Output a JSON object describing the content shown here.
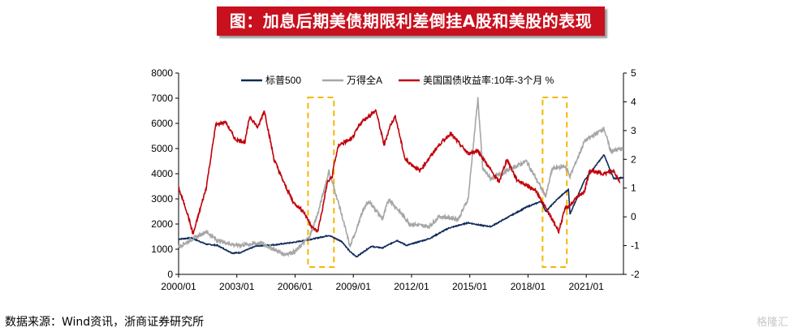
{
  "title": "图：加息后期美债期限利差倒挂A股和美股的表现",
  "source": "数据来源：Wind资讯，浙商证券研究所",
  "watermark": "格隆汇",
  "chart_data": {
    "type": "line",
    "x_ticks": [
      "2000/01",
      "2003/01",
      "2006/01",
      "2009/01",
      "2012/01",
      "2015/01",
      "2018/01",
      "2021/01"
    ],
    "x_range": [
      "2000-01",
      "2022-12"
    ],
    "y_left": {
      "ticks": [
        0,
        1000,
        2000,
        3000,
        4000,
        5000,
        6000,
        7000,
        8000
      ],
      "range": [
        0,
        8000
      ]
    },
    "y_right": {
      "ticks": [
        -2,
        -1,
        0,
        1,
        2,
        3,
        4,
        5
      ],
      "range": [
        -2,
        5
      ]
    },
    "legend_position": "top",
    "series": [
      {
        "name": "标普500",
        "axis": "left",
        "color": "#0f2a5c",
        "points": [
          [
            "2000-01",
            1400
          ],
          [
            "2000-09",
            1450
          ],
          [
            "2001-06",
            1200
          ],
          [
            "2002-01",
            1150
          ],
          [
            "2002-10",
            850
          ],
          [
            "2003-03",
            860
          ],
          [
            "2004-01",
            1130
          ],
          [
            "2005-01",
            1180
          ],
          [
            "2006-01",
            1280
          ],
          [
            "2007-01",
            1420
          ],
          [
            "2007-10",
            1550
          ],
          [
            "2008-06",
            1300
          ],
          [
            "2008-11",
            900
          ],
          [
            "2009-03",
            700
          ],
          [
            "2009-12",
            1110
          ],
          [
            "2010-07",
            1050
          ],
          [
            "2011-04",
            1350
          ],
          [
            "2011-10",
            1150
          ],
          [
            "2012-12",
            1420
          ],
          [
            "2013-12",
            1840
          ],
          [
            "2014-12",
            2050
          ],
          [
            "2015-08",
            1950
          ],
          [
            "2016-02",
            1900
          ],
          [
            "2016-12",
            2250
          ],
          [
            "2017-12",
            2670
          ],
          [
            "2018-09",
            2900
          ],
          [
            "2018-12",
            2500
          ],
          [
            "2019-07",
            2980
          ],
          [
            "2020-02",
            3380
          ],
          [
            "2020-03",
            2400
          ],
          [
            "2020-12",
            3750
          ],
          [
            "2021-12",
            4750
          ],
          [
            "2022-06",
            3800
          ],
          [
            "2022-12",
            3850
          ]
        ]
      },
      {
        "name": "万得全A",
        "axis": "left",
        "color": "#a6a6a6",
        "points": [
          [
            "2000-01",
            1100
          ],
          [
            "2001-06",
            1700
          ],
          [
            "2002-01",
            1350
          ],
          [
            "2003-01",
            1150
          ],
          [
            "2004-04",
            1250
          ],
          [
            "2005-06",
            800
          ],
          [
            "2006-01",
            900
          ],
          [
            "2006-10",
            1500
          ],
          [
            "2007-03",
            2400
          ],
          [
            "2007-10",
            4100
          ],
          [
            "2008-04",
            2800
          ],
          [
            "2008-11",
            1100
          ],
          [
            "2009-08",
            2700
          ],
          [
            "2009-11",
            2900
          ],
          [
            "2010-07",
            2200
          ],
          [
            "2010-11",
            3000
          ],
          [
            "2011-12",
            2000
          ],
          [
            "2012-12",
            1900
          ],
          [
            "2013-06",
            2300
          ],
          [
            "2014-06",
            2200
          ],
          [
            "2014-12",
            3000
          ],
          [
            "2015-06",
            7000
          ],
          [
            "2015-09",
            4200
          ],
          [
            "2016-02",
            3800
          ],
          [
            "2017-12",
            4500
          ],
          [
            "2018-12",
            3100
          ],
          [
            "2019-04",
            4200
          ],
          [
            "2019-12",
            4300
          ],
          [
            "2020-03",
            3900
          ],
          [
            "2020-12",
            5300
          ],
          [
            "2021-12",
            5800
          ],
          [
            "2022-04",
            4900
          ],
          [
            "2022-12",
            5000
          ]
        ]
      },
      {
        "name": "美国国债收益率:10年-3个月 %",
        "axis": "right",
        "color": "#c0000b",
        "points": [
          [
            "2000-01",
            1.0
          ],
          [
            "2000-06",
            0.2
          ],
          [
            "2000-10",
            -0.6
          ],
          [
            "2001-06",
            1.0
          ],
          [
            "2001-12",
            3.2
          ],
          [
            "2002-06",
            3.3
          ],
          [
            "2002-12",
            2.7
          ],
          [
            "2003-06",
            2.6
          ],
          [
            "2003-09",
            3.5
          ],
          [
            "2004-02",
            3.1
          ],
          [
            "2004-06",
            3.7
          ],
          [
            "2004-12",
            2.0
          ],
          [
            "2005-06",
            1.2
          ],
          [
            "2005-12",
            0.5
          ],
          [
            "2006-06",
            0.2
          ],
          [
            "2006-12",
            -0.4
          ],
          [
            "2007-03",
            -0.5
          ],
          [
            "2007-06",
            0.3
          ],
          [
            "2007-09",
            1.2
          ],
          [
            "2007-12",
            1.4
          ],
          [
            "2008-01",
            1.8
          ],
          [
            "2008-04",
            2.5
          ],
          [
            "2008-12",
            2.7
          ],
          [
            "2009-06",
            3.3
          ],
          [
            "2010-03",
            3.7
          ],
          [
            "2010-08",
            2.5
          ],
          [
            "2010-12",
            3.2
          ],
          [
            "2011-03",
            3.5
          ],
          [
            "2011-09",
            2.0
          ],
          [
            "2012-06",
            1.6
          ],
          [
            "2013-06",
            2.5
          ],
          [
            "2014-01",
            2.9
          ],
          [
            "2014-12",
            2.2
          ],
          [
            "2015-06",
            2.3
          ],
          [
            "2016-07",
            1.2
          ],
          [
            "2016-12",
            2.0
          ],
          [
            "2017-06",
            1.3
          ],
          [
            "2018-06",
            0.9
          ],
          [
            "2018-12",
            0.3
          ],
          [
            "2019-03",
            0.0
          ],
          [
            "2019-08",
            -0.5
          ],
          [
            "2019-12",
            0.3
          ],
          [
            "2020-03",
            0.4
          ],
          [
            "2020-06",
            0.6
          ],
          [
            "2020-12",
            0.9
          ],
          [
            "2021-03",
            1.6
          ],
          [
            "2021-12",
            1.5
          ],
          [
            "2022-06",
            1.6
          ],
          [
            "2022-10",
            1.2
          ]
        ]
      }
    ],
    "highlight_boxes": [
      {
        "x_from": "2006-09",
        "x_to": "2008-01"
      },
      {
        "x_from": "2018-10",
        "x_to": "2020-01"
      }
    ]
  }
}
